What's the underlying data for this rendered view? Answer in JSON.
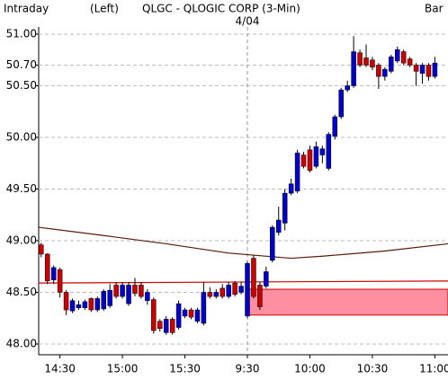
{
  "chart_data": {
    "type": "candlestick",
    "header": {
      "left": "Intraday",
      "side": "(Left)",
      "title": "QLGC - QLOGIC CORP (3-Min)",
      "right": "Bar"
    },
    "annotation": {
      "text": "4/04",
      "x": 33
    },
    "up_color": "#0000cc",
    "down_color": "#cc0000",
    "open": [
      48.96,
      48.87,
      48.62,
      48.72,
      48.5,
      48.32,
      48.35,
      48.35,
      48.44,
      48.33,
      48.34,
      48.37,
      48.57,
      48.46,
      48.39,
      48.57,
      48.57,
      48.42,
      48.43,
      48.22,
      48.11,
      48.24,
      48.16,
      48.27,
      48.33,
      48.22,
      48.2,
      48.5,
      48.46,
      48.54,
      48.46,
      48.59,
      48.5,
      48.27,
      48.83,
      48.57,
      48.56,
      48.81,
      49.08,
      49.17,
      49.46,
      49.48,
      49.83,
      49.88,
      49.72,
      49.83,
      49.7,
      50.01,
      50.2,
      50.46,
      50.5,
      50.82,
      50.77,
      50.75,
      50.7,
      50.59,
      50.64,
      50.74,
      50.83,
      50.76,
      50.7,
      50.62,
      50.7,
      50.59
    ],
    "high": [
      48.98,
      48.88,
      48.76,
      48.74,
      48.52,
      48.44,
      48.42,
      48.43,
      48.45,
      48.46,
      48.53,
      48.58,
      48.6,
      48.6,
      48.6,
      48.64,
      48.6,
      48.53,
      48.45,
      48.24,
      48.27,
      48.26,
      48.42,
      48.35,
      48.35,
      48.35,
      48.6,
      48.55,
      48.53,
      48.58,
      48.6,
      48.61,
      48.6,
      48.8,
      48.86,
      48.6,
      48.75,
      49.15,
      49.33,
      49.5,
      49.6,
      49.88,
      49.86,
      49.92,
      49.96,
      49.92,
      50.05,
      50.22,
      50.48,
      50.55,
      50.98,
      50.85,
      50.9,
      50.78,
      50.72,
      50.68,
      50.8,
      50.88,
      50.85,
      50.78,
      50.72,
      50.72,
      50.72,
      50.78
    ],
    "low": [
      48.84,
      48.58,
      48.58,
      48.45,
      48.28,
      48.3,
      48.33,
      48.33,
      48.31,
      48.31,
      48.32,
      48.35,
      48.44,
      48.44,
      48.37,
      48.46,
      48.44,
      48.38,
      48.1,
      48.12,
      48.09,
      48.09,
      48.14,
      48.25,
      48.24,
      48.2,
      48.18,
      48.44,
      48.44,
      48.44,
      48.44,
      48.46,
      48.48,
      48.25,
      48.44,
      48.33,
      48.54,
      48.79,
      49.05,
      49.1,
      49.44,
      49.46,
      49.7,
      49.66,
      49.7,
      49.75,
      49.68,
      49.98,
      50.18,
      50.44,
      50.48,
      50.68,
      50.68,
      50.65,
      50.47,
      50.55,
      50.62,
      50.72,
      50.7,
      50.68,
      50.5,
      50.52,
      50.55,
      50.57
    ],
    "close": [
      48.87,
      48.61,
      48.74,
      48.5,
      48.33,
      48.42,
      48.38,
      48.41,
      48.33,
      48.44,
      48.51,
      48.52,
      48.46,
      48.57,
      48.57,
      48.49,
      48.46,
      48.5,
      48.13,
      48.15,
      48.24,
      48.11,
      48.39,
      48.33,
      48.26,
      48.33,
      48.5,
      48.46,
      48.5,
      48.46,
      48.57,
      48.48,
      48.56,
      48.78,
      48.46,
      48.36,
      48.7,
      49.13,
      49.2,
      49.46,
      49.55,
      49.85,
      49.72,
      49.68,
      49.91,
      49.89,
      50.03,
      50.2,
      50.46,
      50.5,
      50.83,
      50.7,
      50.7,
      50.68,
      50.59,
      50.66,
      50.78,
      50.85,
      50.72,
      50.7,
      50.64,
      50.7,
      50.59,
      50.72
    ],
    "lines": [
      {
        "color": "#5a1a0a",
        "x": [
          -0.4,
          10,
          20,
          30,
          40,
          45,
          55,
          65.1
        ],
        "values": [
          49.13,
          49.05,
          48.97,
          48.88,
          48.83,
          48.85,
          48.9,
          48.97
        ]
      },
      {
        "color": "#cc0000",
        "x": [
          -0.4,
          65.1
        ],
        "values": [
          48.59,
          48.61
        ]
      }
    ],
    "zone": {
      "from": 33,
      "low": 48.28,
      "high": 48.53,
      "color": "#ff8fa0"
    },
    "xlim": [
      -0.4,
      65.1
    ],
    "xticks": [
      {
        "value": 3,
        "label": "14:30"
      },
      {
        "value": 13,
        "label": "15:00"
      },
      {
        "value": 23,
        "label": "15:30"
      },
      {
        "value": 33,
        "label": "9:30"
      },
      {
        "value": 43,
        "label": "10:00"
      },
      {
        "value": 53,
        "label": "10:30"
      },
      {
        "value": 63,
        "label": "11:00"
      }
    ],
    "ylim": [
      48.0,
      51.0
    ],
    "yticks": [
      {
        "value": 51.0,
        "label": "51.00"
      },
      {
        "value": 50.7,
        "label": "50.70"
      },
      {
        "value": 50.5,
        "label": "50.50"
      },
      {
        "value": 50.0,
        "label": "50.00"
      },
      {
        "value": 49.5,
        "label": "49.50"
      },
      {
        "value": 49.0,
        "label": "49.00"
      },
      {
        "value": 48.5,
        "label": "48.50"
      },
      {
        "value": 48.0,
        "label": "48.00"
      }
    ],
    "grid": true
  }
}
